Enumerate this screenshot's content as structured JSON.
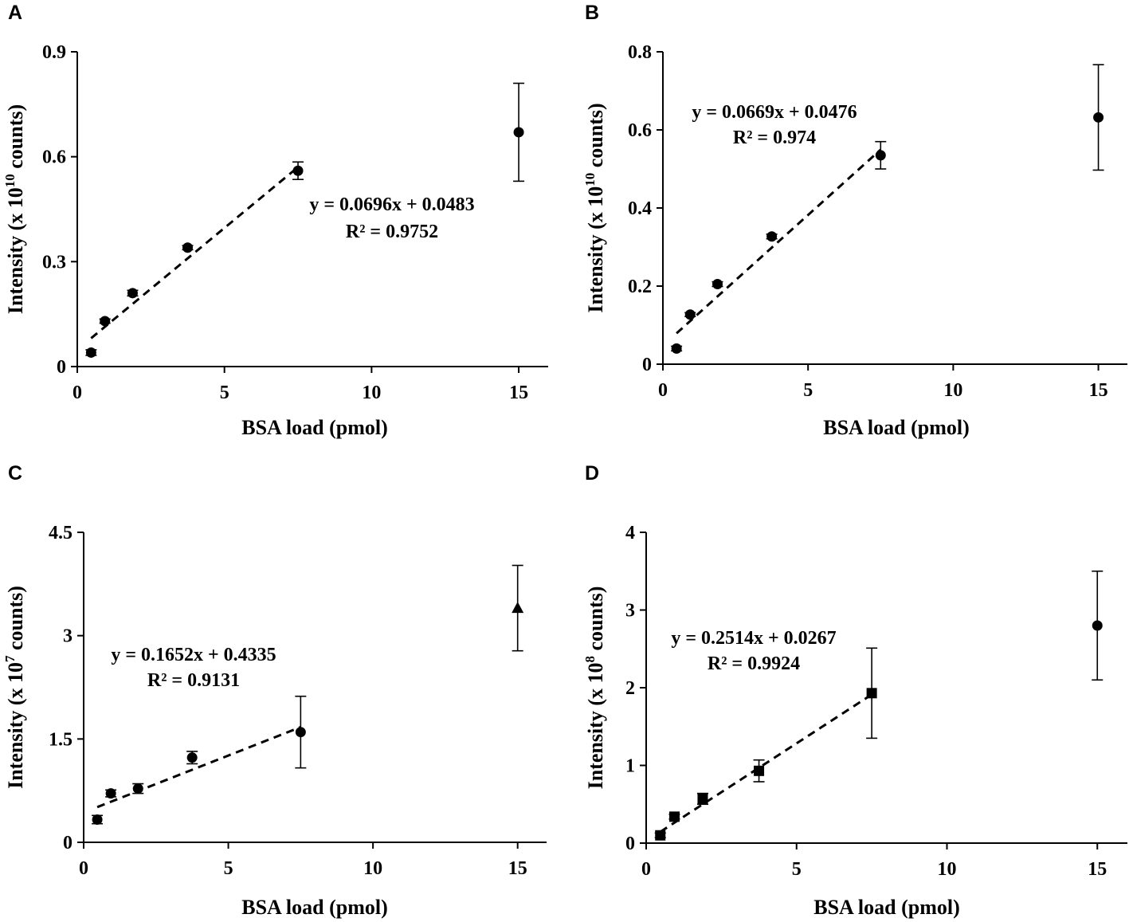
{
  "chart_data": [
    {
      "type": "scatter",
      "panel_label": "A",
      "xlabel": "BSA load (pmol)",
      "ylabel_prefix": "Intensity (x 10",
      "ylabel_exp": "10",
      "ylabel_suffix": " counts)",
      "xlim": [
        0,
        16
      ],
      "ylim": [
        0,
        0.9
      ],
      "xticks": [
        0,
        5,
        10,
        15
      ],
      "xtick_labels": [
        "0",
        "5",
        "10",
        "15"
      ],
      "yticks": [
        0,
        0.3,
        0.6,
        0.9
      ],
      "ytick_labels": [
        "0",
        "0.3",
        "0.6",
        "0.9"
      ],
      "marker": "circle",
      "points": [
        {
          "x": 0.47,
          "y": 0.04,
          "err": 0.008
        },
        {
          "x": 0.94,
          "y": 0.13,
          "err": 0.006
        },
        {
          "x": 1.88,
          "y": 0.21,
          "err": 0.008
        },
        {
          "x": 3.75,
          "y": 0.34,
          "err": 0.006
        },
        {
          "x": 7.5,
          "y": 0.56,
          "err": 0.025
        },
        {
          "x": 15,
          "y": 0.67,
          "err": 0.14
        }
      ],
      "fit": {
        "slope": 0.0696,
        "intercept": 0.0483,
        "x_range": [
          0.47,
          7.5
        ]
      },
      "equation": "y = 0.0696x + 0.0483",
      "r_squared": "R² = 0.9752"
    },
    {
      "type": "scatter",
      "panel_label": "B",
      "xlabel": "BSA load (pmol)",
      "ylabel_prefix": "Intensity (x 10",
      "ylabel_exp": "10",
      "ylabel_suffix": " counts)",
      "xlim": [
        0,
        16
      ],
      "ylim": [
        0,
        0.8
      ],
      "xticks": [
        0,
        5,
        10,
        15
      ],
      "xtick_labels": [
        "0",
        "5",
        "10",
        "15"
      ],
      "yticks": [
        0,
        0.2,
        0.4,
        0.6,
        0.8
      ],
      "ytick_labels": [
        "0",
        "0.2",
        "0.4",
        "0.6",
        "0.8"
      ],
      "marker": "circle",
      "points": [
        {
          "x": 0.47,
          "y": 0.04,
          "err": 0.006
        },
        {
          "x": 0.94,
          "y": 0.127,
          "err": 0.005
        },
        {
          "x": 1.88,
          "y": 0.205,
          "err": 0.006
        },
        {
          "x": 3.75,
          "y": 0.327,
          "err": 0.006
        },
        {
          "x": 7.5,
          "y": 0.535,
          "err": 0.035
        },
        {
          "x": 15,
          "y": 0.632,
          "err": 0.135
        }
      ],
      "fit": {
        "slope": 0.0669,
        "intercept": 0.0476,
        "x_range": [
          0.47,
          7.5
        ]
      },
      "equation": "y = 0.0669x + 0.0476",
      "r_squared": "R² = 0.974"
    },
    {
      "type": "scatter",
      "panel_label": "C",
      "xlabel": "BSA load (pmol)",
      "ylabel_prefix": "Intensity (x 10",
      "ylabel_exp": "7",
      "ylabel_suffix": " counts)",
      "xlim": [
        0,
        16
      ],
      "ylim": [
        0,
        4.5
      ],
      "xticks": [
        0,
        5,
        10,
        15
      ],
      "xtick_labels": [
        "0",
        "5",
        "10",
        "15"
      ],
      "yticks": [
        0,
        1.5,
        3,
        4.5
      ],
      "ytick_labels": [
        "0",
        "1.5",
        "3",
        "4.5"
      ],
      "marker": "circle",
      "last_marker": "triangle",
      "points": [
        {
          "x": 0.47,
          "y": 0.33,
          "err": 0.06
        },
        {
          "x": 0.94,
          "y": 0.71,
          "err": 0.05
        },
        {
          "x": 1.88,
          "y": 0.78,
          "err": 0.07
        },
        {
          "x": 3.75,
          "y": 1.23,
          "err": 0.09
        },
        {
          "x": 7.5,
          "y": 1.6,
          "err": 0.52
        },
        {
          "x": 15,
          "y": 3.4,
          "err": 0.62
        }
      ],
      "fit": {
        "slope": 0.1652,
        "intercept": 0.4335,
        "x_range": [
          0.47,
          7.5
        ]
      },
      "equation": "y = 0.1652x + 0.4335",
      "r_squared": "R² = 0.9131"
    },
    {
      "type": "scatter",
      "panel_label": "D",
      "xlabel": "BSA load (pmol)",
      "ylabel_prefix": "Intensity (x 10",
      "ylabel_exp": "8",
      "ylabel_suffix": " counts)",
      "xlim": [
        0,
        16
      ],
      "ylim": [
        0,
        4
      ],
      "xticks": [
        0,
        5,
        10,
        15
      ],
      "xtick_labels": [
        "0",
        "5",
        "10",
        "15"
      ],
      "yticks": [
        0,
        1,
        2,
        3,
        4
      ],
      "ytick_labels": [
        "0",
        "1",
        "2",
        "3",
        "4"
      ],
      "marker": "square",
      "last_marker": "circle",
      "points": [
        {
          "x": 0.47,
          "y": 0.1,
          "err": 0.03
        },
        {
          "x": 0.94,
          "y": 0.34,
          "err": 0.03
        },
        {
          "x": 1.88,
          "y": 0.57,
          "err": 0.07
        },
        {
          "x": 3.75,
          "y": 0.93,
          "err": 0.14
        },
        {
          "x": 7.5,
          "y": 1.93,
          "err": 0.58
        },
        {
          "x": 15,
          "y": 2.8,
          "err": 0.7
        }
      ],
      "fit": {
        "slope": 0.2514,
        "intercept": 0.0267,
        "x_range": [
          0.47,
          7.5
        ]
      },
      "equation": "y = 0.2514x + 0.0267",
      "r_squared": "R² = 0.9924"
    }
  ]
}
